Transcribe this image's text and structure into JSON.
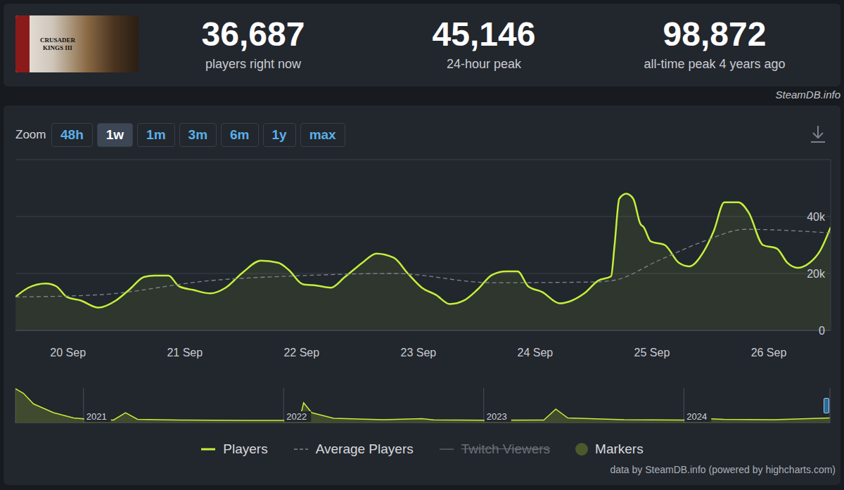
{
  "page": {
    "header": {
      "logo_text": "CRUSADER KINGS III",
      "stats": [
        {
          "value": "36,687",
          "label": "players right now"
        },
        {
          "value": "45,146",
          "label": "24-hour peak"
        },
        {
          "value": "98,872",
          "label": "all-time peak 4 years ago"
        }
      ],
      "source": "SteamDB.info"
    },
    "zoom": {
      "label": "Zoom",
      "options": [
        "48h",
        "1w",
        "1m",
        "3m",
        "6m",
        "1y",
        "max"
      ],
      "active": "1w"
    },
    "legend_extra": [
      {
        "name": "Twitch Viewers",
        "disabled": true
      },
      {
        "name": "Markers",
        "color": "#4b5a2c"
      }
    ],
    "footer": "data by SteamDB.info (powered by highcharts.com)"
  },
  "chart_data": [
    {
      "type": "line",
      "xlim": [
        19.55,
        26.53
      ],
      "xticks": [
        {
          "value": 20,
          "label": "20 Sep"
        },
        {
          "value": 21,
          "label": "21 Sep"
        },
        {
          "value": 22,
          "label": "22 Sep"
        },
        {
          "value": 23,
          "label": "23 Sep"
        },
        {
          "value": 24,
          "label": "24 Sep"
        },
        {
          "value": 25,
          "label": "25 Sep"
        },
        {
          "value": 26,
          "label": "26 Sep"
        }
      ],
      "ylim": [
        0,
        60000
      ],
      "yticks": [
        0,
        {
          "value": 20000,
          "label": "20k"
        },
        {
          "value": 40000,
          "label": "40k"
        }
      ],
      "grid": true,
      "legend": "bottom",
      "series": [
        {
          "name": "Players",
          "type": "area",
          "color": "#c5f03a",
          "x": [
            19.55,
            19.66,
            19.81,
            19.9,
            19.99,
            20.11,
            20.26,
            20.41,
            20.53,
            20.65,
            20.74,
            20.86,
            20.95,
            21.07,
            21.22,
            21.35,
            21.5,
            21.65,
            21.8,
            21.89,
            22.01,
            22.13,
            22.25,
            22.37,
            22.52,
            22.64,
            22.79,
            22.91,
            23.03,
            23.15,
            23.27,
            23.39,
            23.51,
            23.63,
            23.75,
            23.85,
            23.94,
            24.06,
            24.21,
            24.3,
            24.42,
            24.54,
            24.65,
            24.68,
            24.72,
            24.78,
            24.84,
            24.9,
            24.93,
            24.99,
            25.11,
            25.23,
            25.32,
            25.44,
            25.53,
            25.62,
            25.74,
            25.83,
            25.95,
            26.07,
            26.16,
            26.25,
            26.35,
            26.44,
            26.53
          ],
          "values": [
            11750,
            15000,
            16500,
            15500,
            11750,
            10500,
            8000,
            10500,
            14500,
            18750,
            19250,
            19250,
            15500,
            14250,
            13000,
            15000,
            20500,
            24500,
            23750,
            21250,
            16250,
            15750,
            15000,
            18750,
            23750,
            27000,
            25500,
            20000,
            15000,
            12500,
            9250,
            10500,
            14500,
            19500,
            20750,
            20750,
            15500,
            13500,
            9500,
            10250,
            13000,
            17500,
            19000,
            30000,
            46250,
            48000,
            46250,
            37500,
            36250,
            31250,
            30000,
            23750,
            22500,
            27500,
            35000,
            45000,
            45000,
            41250,
            30000,
            28750,
            23750,
            22000,
            23750,
            28000,
            36250
          ]
        },
        {
          "name": "Average Players",
          "type": "line",
          "line_style": "dashed",
          "color": "#80858e",
          "x": [
            19.55,
            20.26,
            21.22,
            22.01,
            22.79,
            23.63,
            24.48,
            24.66,
            25.08,
            25.44,
            25.8,
            26.53
          ],
          "values": [
            11750,
            12500,
            17500,
            19250,
            20000,
            16750,
            17000,
            17500,
            25000,
            31250,
            35500,
            34250
          ]
        }
      ]
    },
    {
      "type": "area",
      "xlim": [
        2020.66,
        2024.73
      ],
      "xticks": [
        2021,
        2022,
        2023,
        2024
      ],
      "ylim": [
        0,
        100000
      ],
      "tick_labels": "x",
      "grid": true,
      "color": "#c5f03a",
      "x": [
        2020.66,
        2020.7,
        2020.75,
        2020.85,
        2020.95,
        2021.05,
        2021.15,
        2021.21,
        2021.27,
        2021.5,
        2021.8,
        2022.0,
        2022.08,
        2022.1,
        2022.14,
        2022.25,
        2022.5,
        2022.69,
        2022.75,
        2023.0,
        2023.3,
        2023.36,
        2023.42,
        2023.7,
        2024.0,
        2024.1,
        2024.2,
        2024.45,
        2024.73
      ],
      "values": [
        98000,
        85000,
        55000,
        30000,
        15000,
        10000,
        9000,
        30000,
        11000,
        9000,
        8000,
        8000,
        10000,
        58000,
        30000,
        14000,
        10000,
        13000,
        9500,
        8500,
        9000,
        40000,
        15000,
        10000,
        9000,
        13000,
        11000,
        10000,
        15000
      ]
    }
  ]
}
